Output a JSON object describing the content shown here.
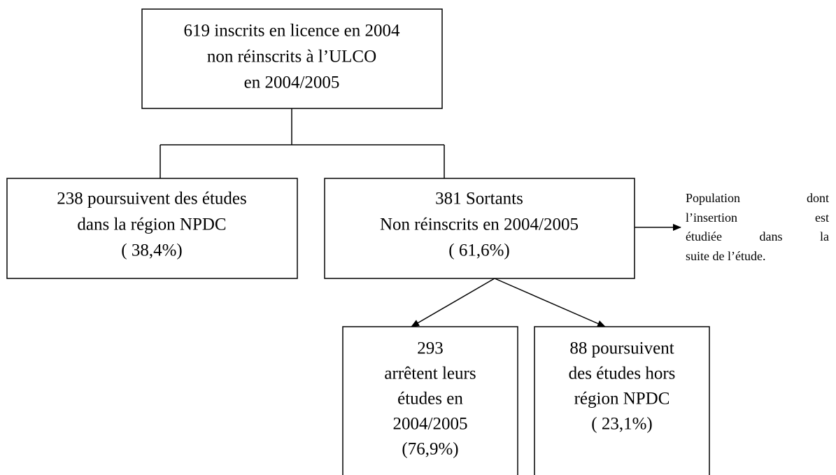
{
  "nodes": [
    {
      "lines": [
        "619 inscrits en licence en 2004",
        "non réinscrits à l’ULCO",
        "en 2004/2005"
      ]
    },
    {
      "lines": [
        "238 poursuivent des études",
        "dans la région NPDC",
        "( 38,4%)"
      ]
    },
    {
      "lines": [
        "381 Sortants",
        "Non réinscrits en 2004/2005",
        "( 61,6%)"
      ]
    },
    {
      "lines": [
        "293",
        "arrêtent leurs",
        "études en",
        "2004/2005",
        "(76,9%)"
      ]
    },
    {
      "lines": [
        "88 poursuivent",
        "des études hors",
        "région NPDC",
        "( 23,1%)"
      ]
    }
  ],
  "note": {
    "lines": [
      "Population dont",
      "l’insertion est",
      "étudiée dans la",
      "suite de l’étude."
    ]
  }
}
